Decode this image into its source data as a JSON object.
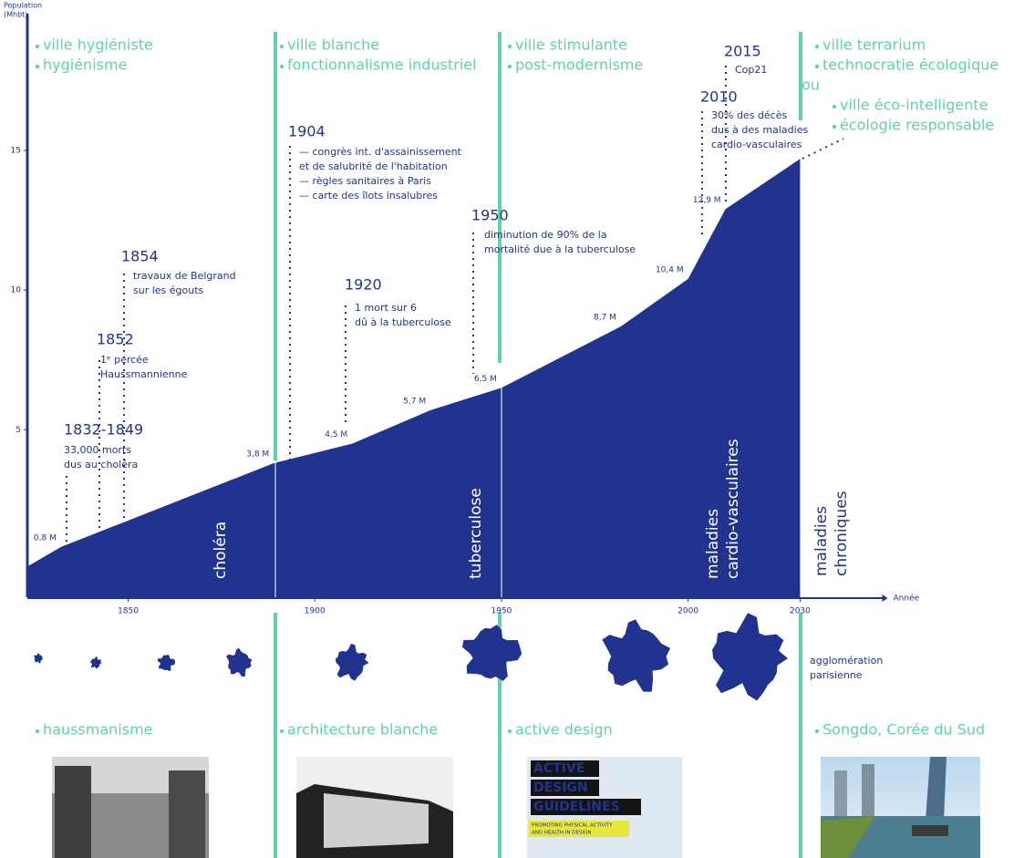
{
  "chart_data": {
    "type": "area",
    "y_label": [
      "Population",
      "(Mhbt)"
    ],
    "x_label": "Année",
    "x": [
      1823,
      1832,
      1889,
      1910,
      1931,
      1950,
      1982,
      2000,
      2010,
      2030
    ],
    "values": [
      0.1,
      0.8,
      3.8,
      4.5,
      5.7,
      6.5,
      8.7,
      10.4,
      12.9,
      14.7
    ],
    "value_labels": [
      null,
      "0,8 M",
      "3,8 M",
      "4,5 M",
      "5,7 M",
      "6,5 M",
      "8,7 M",
      "10,4 M",
      "12,9 M",
      null
    ],
    "color": "#22338f",
    "xlim": [
      1823,
      2052
    ],
    "ylim": [
      -1,
      19.9
    ],
    "xticks": [
      1850,
      1900,
      1950,
      2000,
      2030
    ],
    "yticks": [
      5,
      10,
      15
    ],
    "periods": [
      [
        "ville hygiéniste",
        "hygiénisme"
      ],
      [
        "ville blanche",
        "fonctionnalisme industriel"
      ],
      [
        "ville stimulante",
        "post-modernisme"
      ],
      [
        "ville terrarium",
        "technocratie écologique",
        "ou",
        "ville éco-intelligente",
        "écologie responsable"
      ]
    ],
    "events": [
      {
        "label": "1832-1849",
        "text": [
          "33,000 morts",
          "dus au choléra"
        ]
      },
      {
        "label": "1852",
        "text": [
          "1ᵉ percée",
          "Haussmannienne"
        ]
      },
      {
        "label": "1854",
        "text": [
          "travaux de Belgrand",
          "sur les égouts"
        ]
      },
      {
        "label": "1904",
        "text": [
          "— congrès int. d'assainissement",
          "et de salubrité de l'habitation",
          "— règles sanitaires à Paris",
          "— carte des îlots insalubres"
        ]
      },
      {
        "label": "1920",
        "text": [
          "1 mort sur 6",
          "dû à la tuberculose"
        ]
      },
      {
        "label": "1950",
        "text": [
          "diminution de 90% de la",
          "mortalité due à la tuberculose"
        ]
      },
      {
        "label": "2010",
        "text": [
          "30% des décès",
          "dus à des maladies",
          "cardio-vasculaires"
        ]
      },
      {
        "label": "2015",
        "text": [
          "Cop21"
        ]
      }
    ],
    "diseases": [
      [
        "choléra"
      ],
      [
        "tuberculose"
      ],
      [
        "maladies",
        "cardio-vasculaires"
      ],
      [
        "maladies",
        "chroniques"
      ]
    ],
    "map_label": [
      "agglomération",
      "parisienne"
    ],
    "projects": [
      "haussmanisme",
      "architecture blanche",
      "active design",
      "Songdo, Corée du Sud"
    ],
    "active_design_cover": [
      "ACTIVE",
      "DESIGN",
      "GUIDELINES"
    ],
    "active_design_subtitle": [
      "PROMOTING PHYSICAL ACTIVITY",
      "AND HEALTH IN DESIGN"
    ]
  }
}
